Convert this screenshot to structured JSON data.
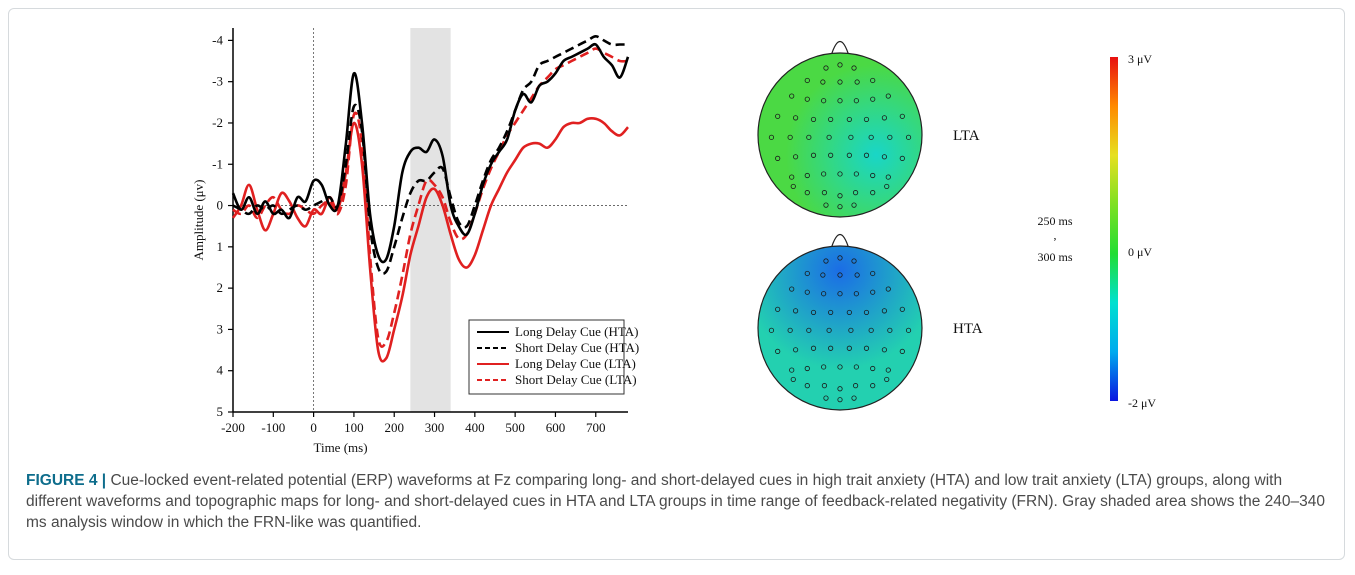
{
  "chart_data": [
    {
      "type": "line",
      "title": "",
      "xlabel": "Time (ms)",
      "ylabel": "Amplitude (μv)",
      "xlim": [
        -200,
        780
      ],
      "ylim": [
        -4.3,
        5
      ],
      "y_inverted": true,
      "xticks": [
        "-200",
        "-100",
        "0",
        "100",
        "200",
        "300",
        "400",
        "500",
        "600",
        "700"
      ],
      "yticks": [
        "-4",
        "-3",
        "-2",
        "-1",
        "0",
        "1",
        "2",
        "3",
        "4",
        "5"
      ],
      "shaded_window": [
        240,
        340
      ],
      "shaded_color": "#e3e3e3",
      "legend_position": "bottom-right",
      "series": [
        {
          "name": "Long Delay Cue (HTA)",
          "color": "#000000",
          "style": "solid",
          "x": [
            -200,
            -180,
            -160,
            -140,
            -120,
            -100,
            -80,
            -60,
            -40,
            -20,
            0,
            20,
            40,
            60,
            80,
            100,
            120,
            140,
            160,
            180,
            200,
            220,
            240,
            260,
            280,
            300,
            320,
            340,
            360,
            380,
            400,
            420,
            440,
            460,
            480,
            500,
            520,
            540,
            560,
            580,
            600,
            620,
            640,
            660,
            680,
            700,
            720,
            740,
            760,
            780
          ],
          "y": [
            -0.3,
            0.1,
            -0.2,
            0.2,
            -0.1,
            0.2,
            0.1,
            0.3,
            -0.2,
            -0.1,
            -0.6,
            -0.5,
            0.0,
            0.0,
            -1.5,
            -3.2,
            -2.0,
            0.2,
            1.2,
            1.3,
            0.5,
            -0.8,
            -1.3,
            -1.4,
            -1.3,
            -1.6,
            -1.2,
            0.0,
            0.5,
            0.7,
            0.2,
            -0.5,
            -1.0,
            -1.3,
            -1.6,
            -2.3,
            -2.7,
            -2.5,
            -2.9,
            -3.0,
            -3.2,
            -3.5,
            -3.6,
            -3.7,
            -3.8,
            -3.9,
            -3.6,
            -3.4,
            -3.1,
            -3.6
          ]
        },
        {
          "name": "Short Delay Cue (HTA)",
          "color": "#000000",
          "style": "dashed",
          "x": [
            -200,
            -180,
            -160,
            -140,
            -120,
            -100,
            -80,
            -60,
            -40,
            -20,
            0,
            20,
            40,
            60,
            80,
            100,
            120,
            140,
            160,
            180,
            200,
            220,
            240,
            260,
            280,
            300,
            320,
            340,
            360,
            380,
            400,
            420,
            440,
            460,
            480,
            500,
            520,
            540,
            560,
            580,
            600,
            620,
            640,
            660,
            680,
            700,
            720,
            740,
            760,
            780
          ],
          "y": [
            0.0,
            0.1,
            0.2,
            0.0,
            0.1,
            0.0,
            0.2,
            0.1,
            0.0,
            0.1,
            0.0,
            -0.1,
            -0.2,
            0.0,
            -1.0,
            -2.4,
            -1.8,
            0.5,
            1.5,
            1.6,
            1.0,
            0.3,
            -0.3,
            -0.6,
            -0.6,
            -0.8,
            -0.9,
            -0.2,
            0.4,
            0.5,
            0.0,
            -0.6,
            -1.1,
            -1.4,
            -1.8,
            -2.3,
            -2.8,
            -3.0,
            -3.4,
            -3.5,
            -3.6,
            -3.7,
            -3.8,
            -3.9,
            -4.0,
            -4.1,
            -4.0,
            -3.9,
            -3.9,
            -3.9
          ]
        },
        {
          "name": "Long Delay Cue (LTA)",
          "color": "#e02020",
          "style": "solid",
          "x": [
            -200,
            -180,
            -160,
            -140,
            -120,
            -100,
            -80,
            -60,
            -40,
            -20,
            0,
            20,
            40,
            60,
            80,
            100,
            120,
            140,
            160,
            180,
            200,
            220,
            240,
            260,
            280,
            300,
            320,
            340,
            360,
            380,
            400,
            420,
            440,
            460,
            480,
            500,
            520,
            540,
            560,
            580,
            600,
            620,
            640,
            660,
            680,
            700,
            720,
            740,
            760,
            780
          ],
          "y": [
            0.3,
            0.0,
            -0.5,
            0.1,
            0.6,
            0.2,
            -0.3,
            -0.1,
            0.3,
            0.5,
            0.1,
            0.2,
            -0.2,
            0.1,
            -0.8,
            -2.0,
            -1.0,
            1.5,
            3.5,
            3.7,
            3.0,
            2.2,
            1.2,
            0.5,
            -0.2,
            -0.4,
            0.0,
            0.7,
            1.3,
            1.5,
            1.2,
            0.6,
            0.0,
            -0.4,
            -0.8,
            -1.1,
            -1.4,
            -1.5,
            -1.5,
            -1.4,
            -1.6,
            -1.9,
            -2.0,
            -2.0,
            -2.1,
            -2.1,
            -2.0,
            -1.8,
            -1.7,
            -1.9
          ]
        },
        {
          "name": "Short Delay Cue (LTA)",
          "color": "#e02020",
          "style": "dashed",
          "x": [
            -200,
            -180,
            -160,
            -140,
            -120,
            -100,
            -80,
            -60,
            -40,
            -20,
            0,
            20,
            40,
            60,
            80,
            100,
            120,
            140,
            160,
            180,
            200,
            220,
            240,
            260,
            280,
            300,
            320,
            340,
            360,
            380,
            400,
            420,
            440,
            460,
            480,
            500,
            520,
            540,
            560,
            580,
            600,
            620,
            640,
            660,
            680,
            700,
            720,
            740,
            760,
            780
          ],
          "y": [
            0.1,
            0.2,
            0.0,
            0.3,
            0.0,
            -0.2,
            0.1,
            0.2,
            0.0,
            0.1,
            0.2,
            0.0,
            -0.1,
            0.2,
            -0.5,
            -2.2,
            -1.5,
            1.2,
            3.2,
            3.3,
            2.6,
            1.7,
            0.7,
            0.0,
            -0.6,
            -0.5,
            -0.2,
            0.4,
            0.8,
            0.7,
            0.2,
            -0.4,
            -0.9,
            -1.3,
            -1.7,
            -2.0,
            -2.3,
            -2.6,
            -2.9,
            -3.1,
            -3.3,
            -3.4,
            -3.5,
            -3.6,
            -3.7,
            -3.8,
            -3.7,
            -3.6,
            -3.5,
            -3.5
          ]
        }
      ]
    },
    {
      "type": "heatmap",
      "title": "",
      "time_window_start": "250 ms",
      "time_window_sep": ",",
      "time_window_end": "300 ms",
      "colorbar_max_label": "3 μV",
      "colorbar_mid_label": "0 μV",
      "colorbar_min_label": "-2 μV",
      "colorbar_range": [
        -2,
        3
      ],
      "colorbar_colors": [
        "#0a14e0",
        "#00aaee",
        "#00e0d0",
        "#22dd33",
        "#7ee022",
        "#e6e020",
        "#ff8a00",
        "#e81010"
      ],
      "maps": [
        {
          "group": "LTA",
          "label": "LTA",
          "mean_value": 0.1,
          "color": "#4bd944",
          "accent_color": "#19d6c7"
        },
        {
          "group": "HTA",
          "label": "HTA",
          "mean_value": -0.4,
          "color": "#23d0b0",
          "accent_color": "#1b6de6"
        }
      ]
    }
  ],
  "caption": {
    "label": "FIGURE 4 |",
    "text": " Cue-locked event-related potential (ERP) waveforms at Fz comparing long- and short-delayed cues in high trait anxiety (HTA) and low trait anxiety (LTA) groups, along with different waveforms and topographic maps for long- and short-delayed cues in HTA and LTA groups in time range of feedback-related negativity (FRN). Gray shaded area shows the 240–340 ms analysis window in which the FRN-like was quantified."
  }
}
